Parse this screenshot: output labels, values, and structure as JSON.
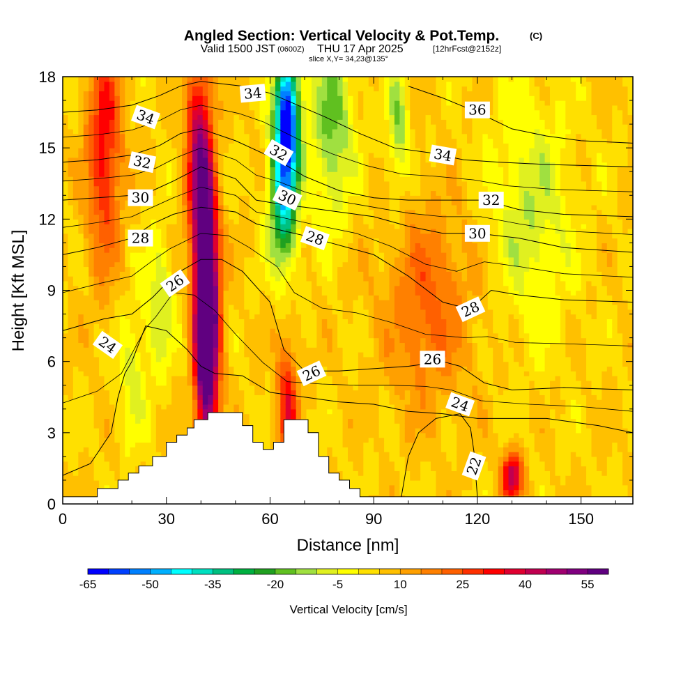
{
  "chart_data": {
    "type": "heatmap",
    "title": "Angled Section: Vertical Velocity & Pot.Temp.",
    "title_units": "(C)",
    "subtitle_valid": "Valid 1500 JST",
    "subtitle_utc": "(0600Z)",
    "subtitle_date": "THU 17 Apr 2025",
    "subtitle_fcst": "[12hrFcst@2152z]",
    "subtitle_slice": "slice X,Y= 34,23@135°",
    "xlabel": "Distance [nm]",
    "ylabel": "Height [Kft MSL]",
    "xlim": [
      0,
      165
    ],
    "ylim": [
      0,
      18
    ],
    "xticks": [
      0,
      30,
      60,
      90,
      120,
      150
    ],
    "yticks": [
      0,
      3,
      6,
      9,
      12,
      15,
      18
    ],
    "colorbar": {
      "label": "Vertical Velocity [cm/s]",
      "ticks": [
        -65,
        -50,
        -35,
        -20,
        -5,
        10,
        25,
        40,
        55
      ],
      "min": -65,
      "step": 5,
      "colors": [
        "#0000ff",
        "#0040ff",
        "#0080ff",
        "#00b0ff",
        "#00ffff",
        "#00e0c0",
        "#00c080",
        "#00b040",
        "#20a020",
        "#60c020",
        "#a0e040",
        "#e0f020",
        "#ffff00",
        "#ffe000",
        "#ffc000",
        "#ffa000",
        "#ff8000",
        "#ff6000",
        "#ff3000",
        "#ff0000",
        "#e00030",
        "#c00050",
        "#a00070",
        "#800080",
        "#600080"
      ]
    },
    "velocity_features": [
      {
        "x": 42,
        "y": 7.5,
        "peak": 57,
        "width": 3.5,
        "height": 5,
        "note": "strong updraft"
      },
      {
        "x": 41,
        "y": 11,
        "peak": 40,
        "width": 3,
        "height": 7
      },
      {
        "x": 38,
        "y": 15,
        "peak": 25,
        "width": 3,
        "height": 4
      },
      {
        "x": 12,
        "y": 15,
        "peak": 28,
        "width": 5,
        "height": 5
      },
      {
        "x": 65,
        "y": 16.5,
        "peak": -62,
        "width": 3.5,
        "height": 2.5,
        "note": "strong downdraft"
      },
      {
        "x": 64,
        "y": 13,
        "peak": -45,
        "width": 4,
        "height": 3
      },
      {
        "x": 78,
        "y": 16,
        "peak": -22,
        "width": 6,
        "height": 4
      },
      {
        "x": 97,
        "y": 16,
        "peak": -18,
        "width": 3,
        "height": 3
      },
      {
        "x": 135,
        "y": 12,
        "peak": -15,
        "width": 12,
        "height": 5
      },
      {
        "x": 28,
        "y": 8.5,
        "peak": -15,
        "width": 4,
        "height": 3
      },
      {
        "x": 20,
        "y": 5.5,
        "peak": -12,
        "width": 4,
        "height": 3
      },
      {
        "x": 65,
        "y": 4,
        "peak": 28,
        "width": 3,
        "height": 3
      },
      {
        "x": 105,
        "y": 8,
        "peak": 12,
        "width": 10,
        "height": 4
      },
      {
        "x": 130,
        "y": 1.2,
        "peak": 40,
        "width": 3,
        "height": 1
      }
    ],
    "terrain": [
      [
        0,
        0.3
      ],
      [
        10,
        0.3
      ],
      [
        10,
        0.65
      ],
      [
        16,
        0.65
      ],
      [
        16,
        1
      ],
      [
        19,
        1
      ],
      [
        19,
        1.3
      ],
      [
        22,
        1.3
      ],
      [
        22,
        1.6
      ],
      [
        26,
        1.6
      ],
      [
        26,
        2
      ],
      [
        30,
        2
      ],
      [
        30,
        2.6
      ],
      [
        33,
        2.6
      ],
      [
        33,
        2.9
      ],
      [
        36,
        2.9
      ],
      [
        36,
        3.2
      ],
      [
        38,
        3.2
      ],
      [
        38,
        3.55
      ],
      [
        42,
        3.55
      ],
      [
        42,
        3.85
      ],
      [
        52,
        3.85
      ],
      [
        52,
        3.3
      ],
      [
        55,
        3.3
      ],
      [
        55,
        2.6
      ],
      [
        58,
        2.6
      ],
      [
        58,
        2.3
      ],
      [
        61,
        2.3
      ],
      [
        61,
        2.6
      ],
      [
        64,
        2.6
      ],
      [
        64,
        3.55
      ],
      [
        71,
        3.55
      ],
      [
        71,
        3
      ],
      [
        74,
        3
      ],
      [
        74,
        2
      ],
      [
        77,
        2
      ],
      [
        77,
        1.3
      ],
      [
        80,
        1.3
      ],
      [
        80,
        1
      ],
      [
        83,
        1
      ],
      [
        83,
        0.65
      ],
      [
        86,
        0.65
      ],
      [
        86,
        0.3
      ],
      [
        165,
        0.3
      ]
    ],
    "theta_contours": [
      {
        "label": "22",
        "points": [
          [
            98,
            0.3
          ],
          [
            100,
            2
          ],
          [
            103,
            3
          ],
          [
            108,
            3.6
          ],
          [
            115,
            3.8
          ],
          [
            118,
            3.2
          ],
          [
            119,
            2.2
          ],
          [
            120,
            0.3
          ]
        ]
      },
      {
        "label": "24",
        "points": [
          [
            0,
            1.2
          ],
          [
            8,
            1.7
          ],
          [
            14,
            3
          ],
          [
            16,
            4.5
          ],
          [
            18,
            5.5
          ],
          [
            20,
            6
          ],
          [
            24,
            7.5
          ],
          [
            30,
            7.3
          ],
          [
            36,
            6.5
          ],
          [
            40,
            5.8
          ],
          [
            44,
            5.5
          ],
          [
            52,
            5.4
          ],
          [
            60,
            4.7
          ],
          [
            70,
            4.5
          ],
          [
            80,
            4.3
          ],
          [
            90,
            4.2
          ],
          [
            100,
            3.9
          ],
          [
            110,
            3.8
          ],
          [
            120,
            3.6
          ],
          [
            140,
            3.6
          ],
          [
            155,
            3.3
          ],
          [
            165,
            3
          ]
        ]
      },
      {
        "label": "26",
        "points": [
          [
            0,
            7.3
          ],
          [
            12,
            7.8
          ],
          [
            20,
            8
          ],
          [
            26,
            8.7
          ],
          [
            30,
            9.3
          ],
          [
            34,
            9.8
          ],
          [
            40,
            10.3
          ],
          [
            46,
            10.3
          ],
          [
            52,
            9.8
          ],
          [
            60,
            8.5
          ],
          [
            64,
            6.5
          ],
          [
            70,
            5.6
          ],
          [
            80,
            5.6
          ],
          [
            90,
            5.7
          ],
          [
            100,
            5.8
          ],
          [
            110,
            6
          ],
          [
            115,
            5.8
          ],
          [
            122,
            5.1
          ],
          [
            130,
            4.8
          ],
          [
            145,
            4.9
          ],
          [
            165,
            4.8
          ]
        ]
      },
      {
        "label": "28",
        "points": [
          [
            0,
            10.5
          ],
          [
            10,
            10.8
          ],
          [
            20,
            11.2
          ],
          [
            26,
            11.8
          ],
          [
            32,
            12.2
          ],
          [
            40,
            12.5
          ],
          [
            50,
            12.3
          ],
          [
            56,
            11.8
          ],
          [
            64,
            11.5
          ],
          [
            70,
            11.3
          ],
          [
            80,
            10.9
          ],
          [
            90,
            10.5
          ],
          [
            100,
            9.6
          ],
          [
            110,
            8.5
          ],
          [
            118,
            8.2
          ],
          [
            124,
            9
          ],
          [
            132,
            8.8
          ],
          [
            145,
            8.6
          ],
          [
            165,
            8.5
          ]
        ]
      },
      {
        "label": "30",
        "points": [
          [
            0,
            12.8
          ],
          [
            10,
            12.9
          ],
          [
            20,
            13
          ],
          [
            26,
            13.2
          ],
          [
            32,
            13.6
          ],
          [
            40,
            14.2
          ],
          [
            50,
            13.7
          ],
          [
            56,
            12.8
          ],
          [
            64,
            12.6
          ],
          [
            70,
            12.5
          ],
          [
            80,
            12.3
          ],
          [
            90,
            12.1
          ],
          [
            100,
            11.7
          ],
          [
            110,
            11.4
          ],
          [
            120,
            11.4
          ],
          [
            132,
            11.2
          ],
          [
            145,
            10.8
          ],
          [
            165,
            10.6
          ]
        ]
      },
      {
        "label": "32",
        "points": [
          [
            0,
            14.4
          ],
          [
            10,
            14.5
          ],
          [
            20,
            14.7
          ],
          [
            28,
            15.1
          ],
          [
            34,
            15.6
          ],
          [
            40,
            15.8
          ],
          [
            50,
            15.3
          ],
          [
            56,
            14.9
          ],
          [
            62,
            14.5
          ],
          [
            70,
            13.8
          ],
          [
            80,
            13.2
          ],
          [
            90,
            12.9
          ],
          [
            100,
            12.8
          ],
          [
            110,
            12.8
          ],
          [
            122,
            12.8
          ],
          [
            132,
            12.4
          ],
          [
            145,
            12.2
          ],
          [
            165,
            12.1
          ]
        ]
      },
      {
        "label": "34",
        "points": [
          [
            0,
            16.5
          ],
          [
            10,
            16.6
          ],
          [
            20,
            16.8
          ],
          [
            28,
            17.2
          ],
          [
            34,
            17.6
          ],
          [
            40,
            17.8
          ],
          [
            52,
            17.6
          ],
          [
            60,
            17.3
          ],
          [
            68,
            16.8
          ],
          [
            76,
            16.3
          ],
          [
            86,
            15.6
          ],
          [
            96,
            15
          ],
          [
            106,
            14.8
          ],
          [
            116,
            14.5
          ],
          [
            126,
            14.4
          ],
          [
            140,
            14.3
          ],
          [
            165,
            14.2
          ]
        ]
      },
      {
        "label": "36",
        "points": [
          [
            100,
            17.6
          ],
          [
            110,
            17.1
          ],
          [
            120,
            16.5
          ],
          [
            130,
            15.8
          ],
          [
            140,
            15.5
          ],
          [
            150,
            15.3
          ],
          [
            165,
            15.2
          ]
        ]
      }
    ],
    "contour_labels": [
      {
        "text": "34",
        "x": 24,
        "y": 16.3,
        "angle": 20
      },
      {
        "text": "32",
        "x": 23,
        "y": 14.4,
        "angle": 12
      },
      {
        "text": "30",
        "x": 22.5,
        "y": 12.9,
        "angle": 0
      },
      {
        "text": "28",
        "x": 22.5,
        "y": 11.2,
        "angle": 0
      },
      {
        "text": "26",
        "x": 32.5,
        "y": 9.3,
        "angle": -35
      },
      {
        "text": "24",
        "x": 13,
        "y": 6.7,
        "angle": 35
      },
      {
        "text": "34",
        "x": 55,
        "y": 17.3,
        "angle": -5
      },
      {
        "text": "32",
        "x": 62.5,
        "y": 14.8,
        "angle": 30
      },
      {
        "text": "30",
        "x": 65,
        "y": 12.9,
        "angle": 25
      },
      {
        "text": "28",
        "x": 73,
        "y": 11.2,
        "angle": 20
      },
      {
        "text": "26",
        "x": 72,
        "y": 5.5,
        "angle": -25
      },
      {
        "text": "36",
        "x": 120,
        "y": 16.6,
        "angle": 0
      },
      {
        "text": "34",
        "x": 110,
        "y": 14.7,
        "angle": 10
      },
      {
        "text": "32",
        "x": 124,
        "y": 12.8,
        "angle": 0
      },
      {
        "text": "30",
        "x": 120,
        "y": 11.4,
        "angle": 0
      },
      {
        "text": "28",
        "x": 118,
        "y": 8.2,
        "angle": -25
      },
      {
        "text": "26",
        "x": 107,
        "y": 6.1,
        "angle": 0
      },
      {
        "text": "24",
        "x": 115,
        "y": 4.2,
        "angle": 20
      },
      {
        "text": "22",
        "x": 119,
        "y": 1.6,
        "angle": -70
      }
    ]
  }
}
